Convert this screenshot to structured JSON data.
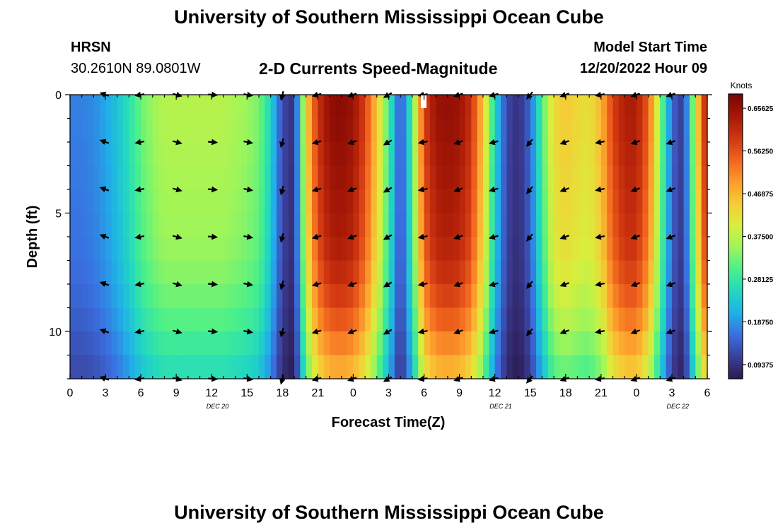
{
  "header": {
    "title": "University of Southern Mississippi Ocean Cube",
    "station": "HRSN",
    "coords": "30.2610N  89.0801W",
    "subtitle": "2-D Currents Speed-Magnitude",
    "model_start_label": "Model Start Time",
    "model_start_value": "12/20/2022 Hour 09"
  },
  "footer": {
    "title_repeat": "University of Southern Mississippi Ocean Cube"
  },
  "chart_data": {
    "type": "heatmap",
    "title": "2-D Currents Speed-Magnitude",
    "xlabel": "Forecast Time(Z)",
    "ylabel": "Depth (ft)",
    "x_range_hours": [
      0,
      54
    ],
    "x_tick_labels": [
      "0",
      "3",
      "6",
      "9",
      "12",
      "15",
      "18",
      "21",
      "0",
      "3",
      "6",
      "9",
      "12",
      "15",
      "18",
      "21",
      "0",
      "3",
      "6"
    ],
    "x_date_labels": [
      {
        "label": "DEC 20",
        "hour": 12.5
      },
      {
        "label": "DEC 21",
        "hour": 36.5
      },
      {
        "label": "DEC 22",
        "hour": 51.5
      }
    ],
    "y_range": [
      0,
      12
    ],
    "y_ticks": [
      0,
      5,
      10
    ],
    "y_tick_labels": [
      "0",
      "5",
      "10"
    ],
    "colorbar": {
      "title": "Knots",
      "min": 0.0625,
      "max": 0.6875,
      "tick_values": [
        0.09375,
        0.1875,
        0.28125,
        0.375,
        0.46875,
        0.5625,
        0.65625
      ],
      "tick_labels": [
        "0.09375",
        "0.18750",
        "0.28125",
        "0.37500",
        "0.46875",
        "0.56250",
        "0.65625"
      ],
      "colors": [
        "#2c1a4e",
        "#3a3f9a",
        "#3a6fe0",
        "#1fb0e8",
        "#22d8c0",
        "#4af08a",
        "#9ef55a",
        "#d9ee3c",
        "#f5cc36",
        "#fd9b2c",
        "#f0641e",
        "#cf3510",
        "#a51806",
        "#7a0403"
      ]
    },
    "speed_profile": {
      "hours": [
        0,
        1,
        2,
        3,
        4,
        5,
        6,
        7,
        8,
        9,
        10,
        11,
        12,
        13,
        14,
        15,
        16,
        17,
        18,
        19,
        20,
        21,
        22,
        23,
        24,
        25,
        26,
        27,
        28,
        29,
        30,
        31,
        32,
        33,
        34,
        35,
        36,
        37,
        38,
        39,
        40,
        41,
        42,
        43,
        44,
        45,
        46,
        47,
        48,
        49,
        50,
        51,
        52,
        53,
        54
      ],
      "surface_knots": [
        0.17,
        0.17,
        0.18,
        0.2,
        0.23,
        0.27,
        0.32,
        0.35,
        0.37,
        0.37,
        0.37,
        0.37,
        0.37,
        0.37,
        0.36,
        0.35,
        0.33,
        0.25,
        0.12,
        0.09,
        0.43,
        0.6,
        0.66,
        0.67,
        0.65,
        0.58,
        0.45,
        0.3,
        0.12,
        0.3,
        0.58,
        0.65,
        0.66,
        0.65,
        0.6,
        0.45,
        0.25,
        0.12,
        0.09,
        0.15,
        0.3,
        0.43,
        0.45,
        0.43,
        0.42,
        0.47,
        0.58,
        0.63,
        0.63,
        0.55,
        0.35,
        0.15,
        0.1,
        0.4,
        0.65
      ]
    },
    "depth_factor": [
      1.0,
      1.0,
      0.99,
      0.98,
      0.97,
      0.96,
      0.95,
      0.93,
      0.9,
      0.86,
      0.81,
      0.75,
      0.7
    ],
    "arrows": {
      "hours": [
        3,
        6,
        9,
        12,
        15,
        18,
        21,
        24,
        27,
        30,
        33,
        36,
        39,
        42,
        45,
        48,
        51
      ],
      "depths": [
        0,
        2,
        4,
        6,
        8,
        10,
        12
      ],
      "angles_deg": [
        200,
        170,
        15,
        5,
        10,
        105,
        165,
        160,
        150,
        170,
        160,
        165,
        130,
        160,
        170,
        160,
        160
      ]
    }
  }
}
